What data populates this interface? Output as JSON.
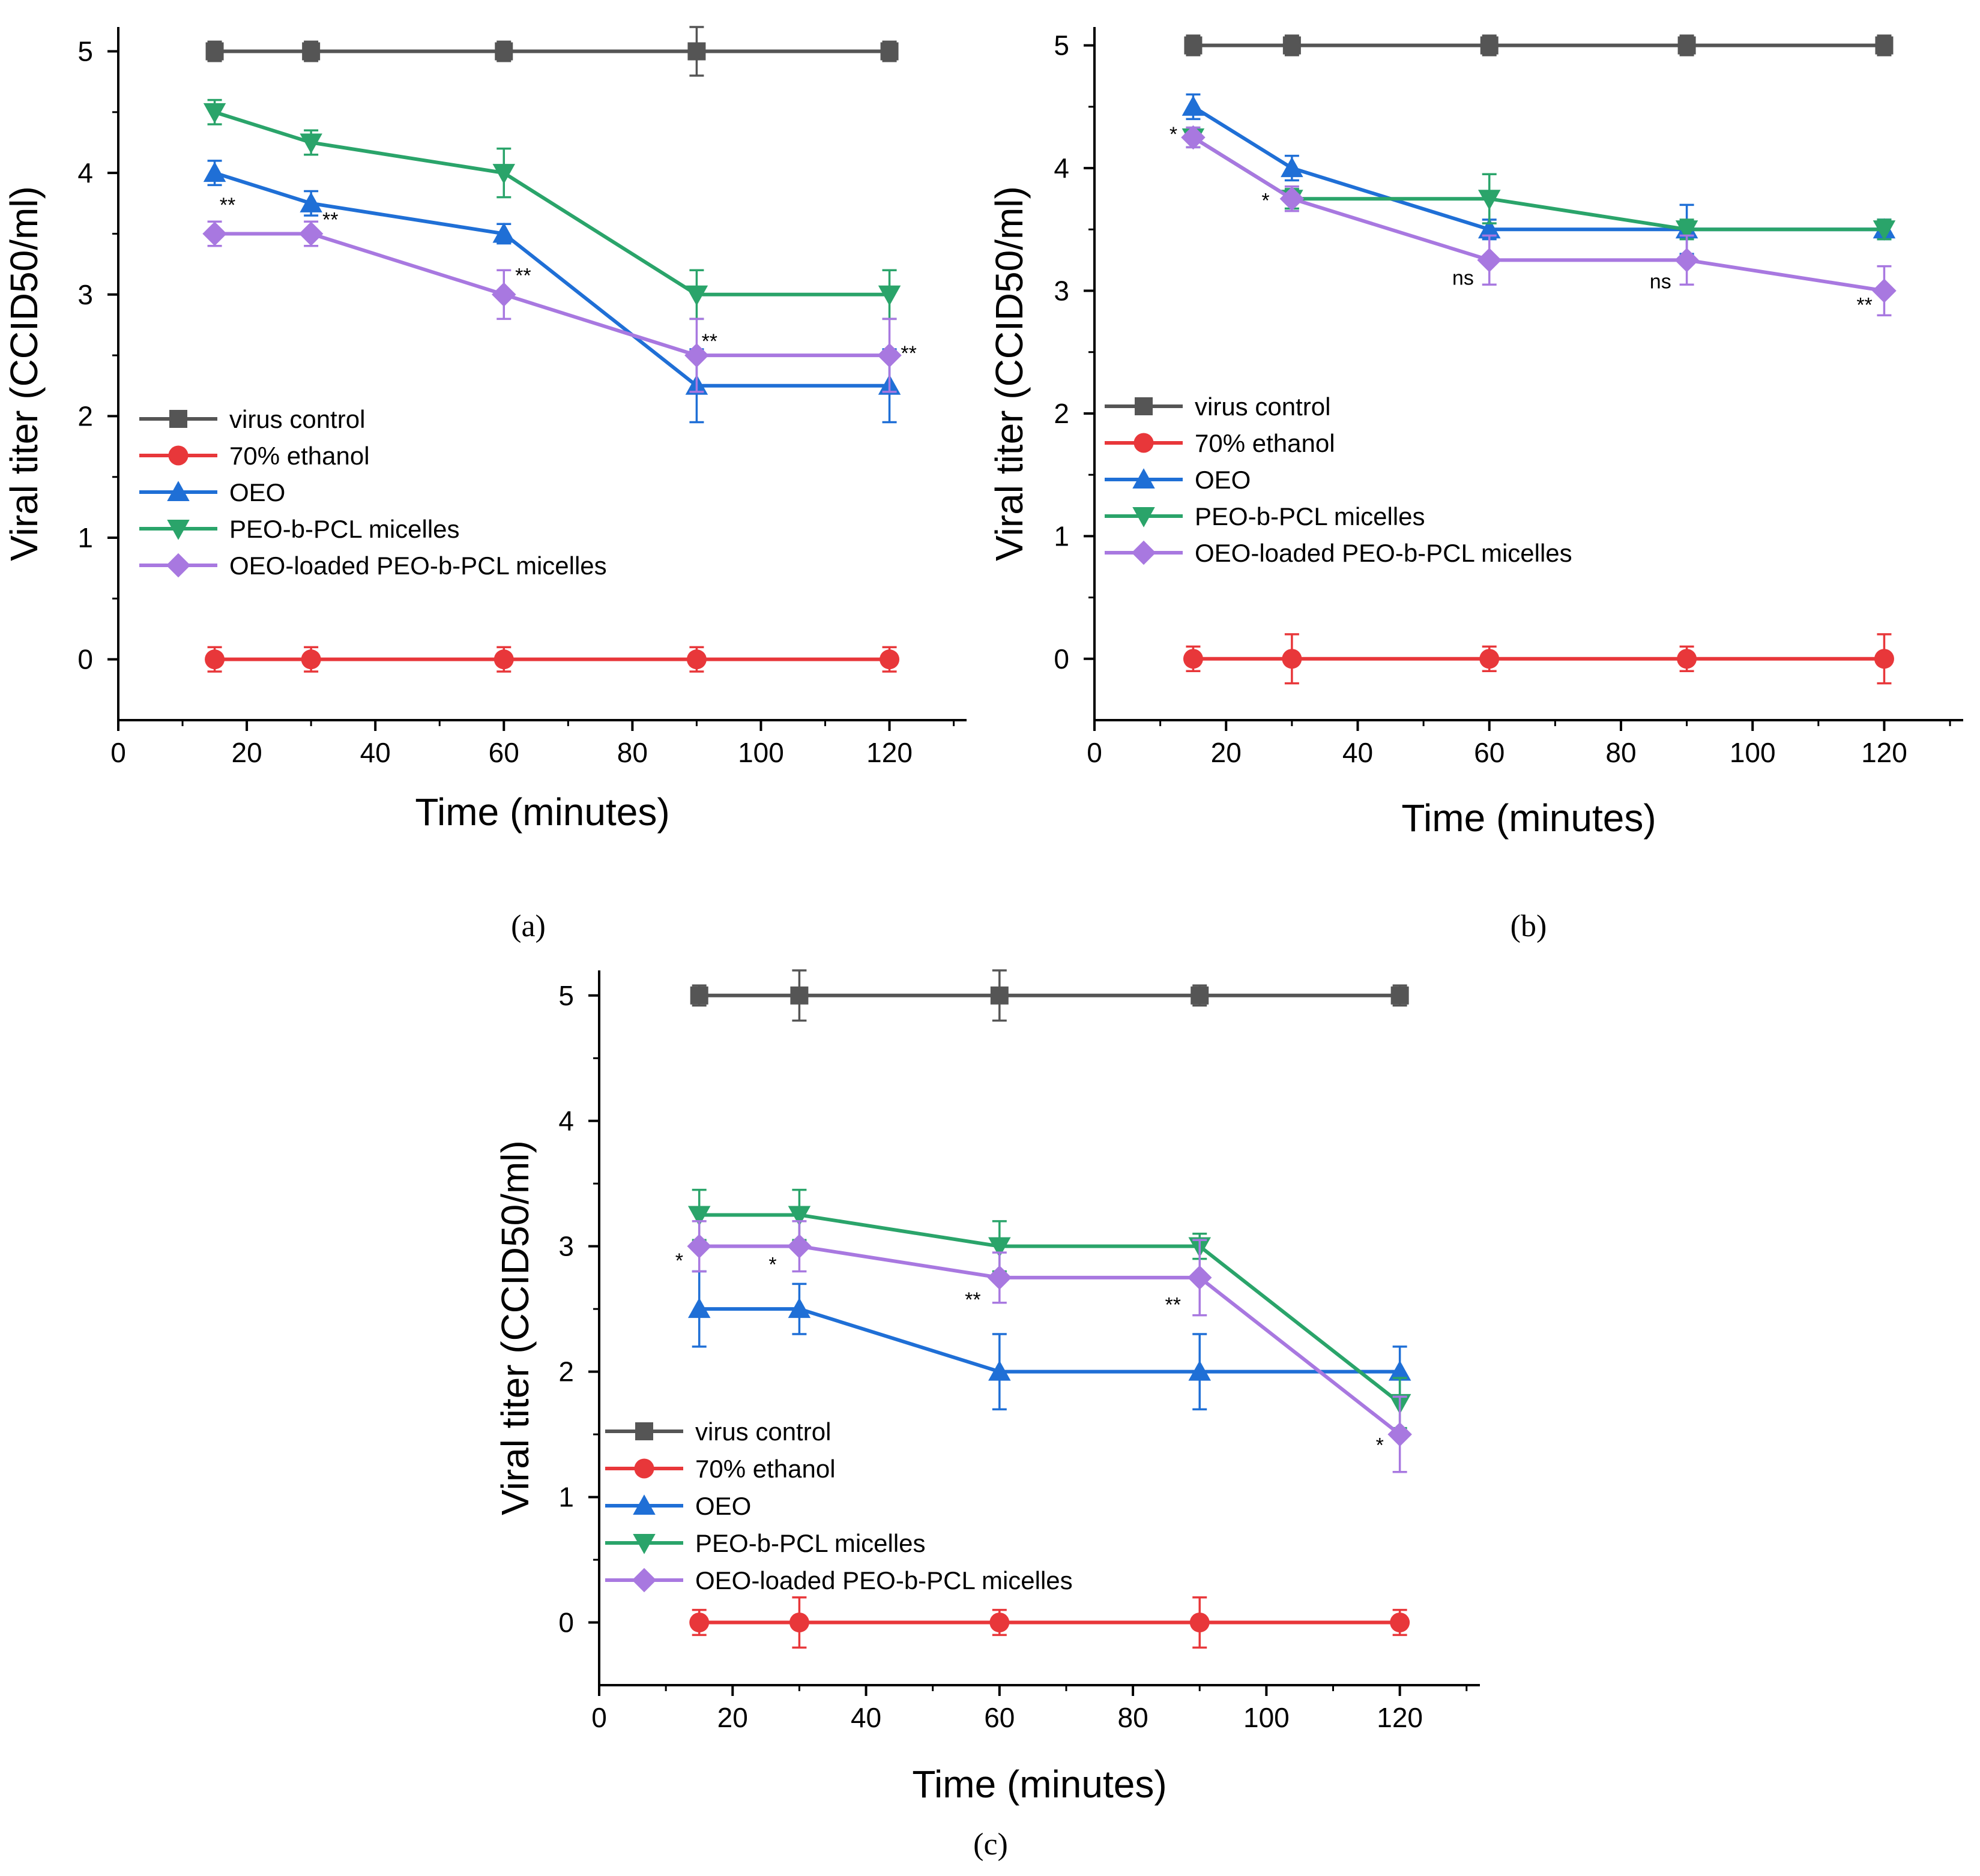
{
  "legend": [
    {
      "label": "virus control",
      "color": "#555555",
      "marker": "square"
    },
    {
      "label": "70% ethanol",
      "color": "#e8373a",
      "marker": "circle"
    },
    {
      "label": "OEO",
      "color": "#1f6fd6",
      "marker": "triangle-up"
    },
    {
      "label": "PEO-b-PCL micelles",
      "color": "#2aa46a",
      "marker": "triangle-down"
    },
    {
      "label": "OEO-loaded PEO-b-PCL micelles",
      "color": "#a878e0",
      "marker": "diamond"
    }
  ],
  "chart_data": [
    {
      "type": "line",
      "panel": "(a)",
      "xlabel": "Time (minutes)",
      "ylabel": "Viral titer (CCID50/ml)",
      "xlim": [
        0,
        132
      ],
      "ylim": [
        -0.5,
        5.2
      ],
      "xticks": [
        "0",
        "20",
        "40",
        "60",
        "80",
        "100",
        "120"
      ],
      "yticks": [
        "0",
        "1",
        "2",
        "3",
        "4",
        "5"
      ],
      "x": [
        15,
        30,
        60,
        90,
        120
      ],
      "series": [
        {
          "name": "virus control",
          "values": [
            5,
            5,
            5,
            5,
            5
          ],
          "errors": [
            0.08,
            0.08,
            0.08,
            0.2,
            0.08
          ]
        },
        {
          "name": "70% ethanol",
          "values": [
            0,
            0,
            0,
            0,
            0
          ],
          "errors": [
            0.1,
            0.1,
            0.1,
            0.1,
            0.1
          ]
        },
        {
          "name": "OEO",
          "values": [
            4,
            3.75,
            3.5,
            2.25,
            2.25
          ],
          "errors": [
            0.1,
            0.1,
            0.08,
            0.3,
            0.3
          ]
        },
        {
          "name": "PEO-b-PCL micelles",
          "values": [
            4.5,
            4.25,
            4,
            3,
            3
          ],
          "errors": [
            0.1,
            0.1,
            0.2,
            0.2,
            0.2
          ]
        },
        {
          "name": "OEO-loaded PEO-b-PCL micelles",
          "values": [
            3.5,
            3.5,
            3,
            2.5,
            2.5
          ],
          "errors": [
            0.1,
            0.1,
            0.2,
            0.3,
            0.3
          ]
        }
      ],
      "annotations": [
        {
          "text": "**",
          "x": 17,
          "y": 3.68
        },
        {
          "text": "**",
          "x": 33,
          "y": 3.56
        },
        {
          "text": "**",
          "x": 63,
          "y": 3.1
        },
        {
          "text": "**",
          "x": 92,
          "y": 2.56
        },
        {
          "text": "**",
          "x": 123,
          "y": 2.46
        }
      ]
    },
    {
      "type": "line",
      "panel": "(b)",
      "xlabel": "Time (minutes)",
      "ylabel": "Viral titer (CCID50/ml)",
      "xlim": [
        0,
        132
      ],
      "ylim": [
        -0.5,
        5.15
      ],
      "xticks": [
        "0",
        "20",
        "40",
        "60",
        "80",
        "100",
        "120"
      ],
      "yticks": [
        "0",
        "1",
        "2",
        "3",
        "4",
        "5"
      ],
      "x": [
        15,
        30,
        60,
        90,
        120
      ],
      "series": [
        {
          "name": "virus control",
          "values": [
            5,
            5,
            5,
            5,
            5
          ],
          "errors": [
            0.08,
            0.08,
            0.08,
            0.08,
            0.08
          ]
        },
        {
          "name": "70% ethanol",
          "values": [
            0,
            0,
            0,
            0,
            0
          ],
          "errors": [
            0.1,
            0.2,
            0.1,
            0.1,
            0.2
          ]
        },
        {
          "name": "OEO",
          "values": [
            4.5,
            4,
            3.5,
            3.5,
            3.5
          ],
          "errors": [
            0.1,
            0.1,
            0.08,
            0.2,
            0.08
          ]
        },
        {
          "name": "PEO-b-PCL micelles",
          "values": [
            4.25,
            3.75,
            3.75,
            3.5,
            3.5
          ],
          "errors": [
            0.08,
            0.08,
            0.2,
            0.08,
            0.08
          ]
        },
        {
          "name": "OEO-loaded PEO-b-PCL micelles",
          "values": [
            4.25,
            3.75,
            3.25,
            3.25,
            3
          ],
          "errors": [
            0.08,
            0.1,
            0.2,
            0.2,
            0.2
          ]
        }
      ],
      "annotations": [
        {
          "text": "*",
          "x": 12,
          "y": 4.22
        },
        {
          "text": "*",
          "x": 26,
          "y": 3.68
        },
        {
          "text": "ns",
          "x": 56,
          "y": 3.05
        },
        {
          "text": "ns",
          "x": 86,
          "y": 3.02
        },
        {
          "text": "**",
          "x": 117,
          "y": 2.83
        }
      ]
    },
    {
      "type": "line",
      "panel": "(c)",
      "xlabel": "Time (minutes)",
      "ylabel": "Viral titer (CCID50/ml)",
      "xlim": [
        0,
        132
      ],
      "ylim": [
        -0.5,
        5.2
      ],
      "xticks": [
        "0",
        "20",
        "40",
        "60",
        "80",
        "100",
        "120"
      ],
      "yticks": [
        "0",
        "1",
        "2",
        "3",
        "4",
        "5"
      ],
      "x": [
        15,
        30,
        60,
        90,
        120
      ],
      "series": [
        {
          "name": "virus control",
          "values": [
            5,
            5,
            5,
            5,
            5
          ],
          "errors": [
            0.08,
            0.2,
            0.2,
            0.08,
            0.08
          ]
        },
        {
          "name": "70% ethanol",
          "values": [
            0,
            0,
            0,
            0,
            0
          ],
          "errors": [
            0.1,
            0.2,
            0.1,
            0.2,
            0.1
          ]
        },
        {
          "name": "OEO",
          "values": [
            2.5,
            2.5,
            2,
            2,
            2
          ],
          "errors": [
            0.3,
            0.2,
            0.3,
            0.3,
            0.2
          ]
        },
        {
          "name": "PEO-b-PCL micelles",
          "values": [
            3.25,
            3.25,
            3,
            3,
            1.75
          ],
          "errors": [
            0.2,
            0.2,
            0.2,
            0.1,
            0.2
          ]
        },
        {
          "name": "OEO-loaded PEO-b-PCL micelles",
          "values": [
            3,
            3,
            2.75,
            2.75,
            1.5
          ],
          "errors": [
            0.2,
            0.2,
            0.2,
            0.3,
            0.3
          ]
        }
      ],
      "annotations": [
        {
          "text": "*",
          "x": 12,
          "y": 2.83
        },
        {
          "text": "*",
          "x": 26,
          "y": 2.8
        },
        {
          "text": "**",
          "x": 56,
          "y": 2.52
        },
        {
          "text": "**",
          "x": 86,
          "y": 2.48
        },
        {
          "text": "*",
          "x": 117,
          "y": 1.36
        }
      ]
    }
  ]
}
